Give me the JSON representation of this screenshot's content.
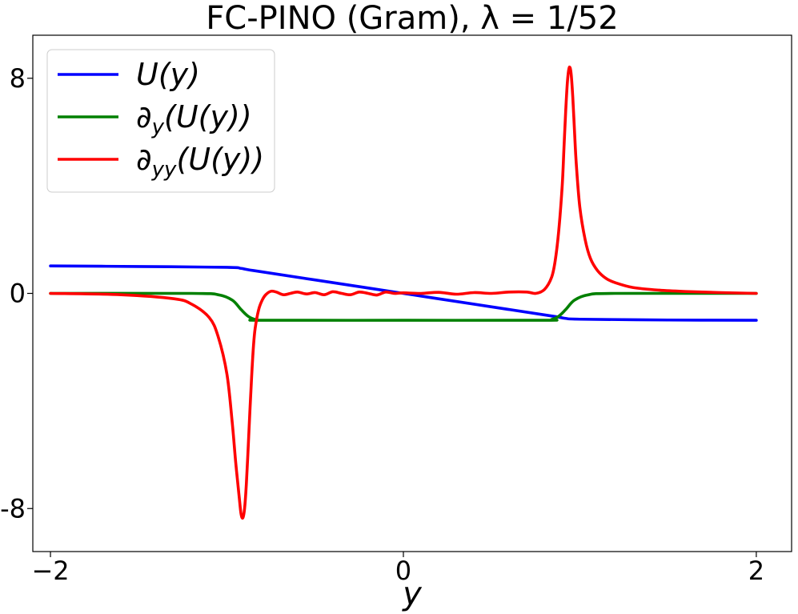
{
  "chart_data": {
    "type": "line",
    "title": "FC-PINO (Gram), λ = 1/52",
    "xlabel": "y",
    "ylabel": "",
    "xlim": [
      -2.1,
      2.2
    ],
    "ylim": [
      -9.6,
      9.6
    ],
    "x_ticks": [
      -2,
      0,
      2
    ],
    "x_tick_labels": [
      "−2",
      "0",
      "2"
    ],
    "y_ticks": [
      8,
      0,
      -8
    ],
    "y_tick_labels": [
      "8",
      "0",
      "-8"
    ],
    "grid": false,
    "legend_position": "top-left",
    "series": [
      {
        "name": "U(y)",
        "legend_main": "U(y)",
        "legend_sub": "",
        "legend_tail": "",
        "color": "#0000ff",
        "x": [
          -2.0,
          -1.5,
          -1.0,
          -0.92,
          -0.85,
          -0.5,
          0.0,
          0.5,
          0.85,
          0.92,
          1.0,
          1.5,
          2.0
        ],
        "y": [
          1.02,
          1.0,
          0.97,
          0.93,
          0.85,
          0.5,
          0.0,
          -0.5,
          -0.85,
          -0.93,
          -0.96,
          -0.99,
          -1.0
        ]
      },
      {
        "name": "∂y(U(y))",
        "legend_main": "∂",
        "legend_sub": "y",
        "legend_tail": "(U(y))",
        "color": "#008000",
        "x": [
          -2.0,
          -1.2,
          -1.05,
          -0.97,
          -0.92,
          -0.88,
          -0.84,
          -0.8,
          0.0,
          0.8,
          0.84,
          0.88,
          0.92,
          0.97,
          1.05,
          1.2,
          2.0
        ],
        "y": [
          0.0,
          0.0,
          -0.05,
          -0.25,
          -0.6,
          -0.85,
          -0.97,
          -1.0,
          -1.0,
          -1.0,
          -0.97,
          -0.85,
          -0.6,
          -0.25,
          -0.05,
          0.0,
          0.0
        ]
      },
      {
        "name": "∂yy(U(y))",
        "legend_main": "∂",
        "legend_sub": "yy",
        "legend_tail": "(U(y))",
        "color": "#ff0000",
        "x": [
          -2.0,
          -1.6,
          -1.3,
          -1.2,
          -1.1,
          -1.05,
          -1.0,
          -0.97,
          -0.95,
          -0.93,
          -0.92,
          -0.91,
          -0.9,
          -0.89,
          -0.88,
          -0.87,
          -0.86,
          -0.85,
          -0.84,
          -0.82,
          -0.8,
          -0.78,
          -0.75,
          -0.72,
          -0.68,
          -0.64,
          -0.6,
          -0.55,
          -0.5,
          -0.45,
          -0.4,
          -0.35,
          -0.3,
          -0.25,
          -0.2,
          -0.15,
          -0.1,
          -0.05,
          0.0,
          0.1,
          0.2,
          0.3,
          0.4,
          0.5,
          0.6,
          0.7,
          0.75,
          0.8,
          0.84,
          0.86,
          0.88,
          0.9,
          0.91,
          0.92,
          0.93,
          0.94,
          0.95,
          0.96,
          0.97,
          0.98,
          1.0,
          1.03,
          1.06,
          1.1,
          1.15,
          1.2,
          1.3,
          1.45,
          1.6,
          1.8,
          2.0
        ],
        "y": [
          0.0,
          -0.05,
          -0.2,
          -0.4,
          -0.9,
          -1.6,
          -3.0,
          -4.8,
          -6.3,
          -7.6,
          -8.2,
          -8.35,
          -8.0,
          -7.1,
          -5.8,
          -4.4,
          -3.1,
          -2.0,
          -1.3,
          -0.6,
          -0.25,
          -0.05,
          0.08,
          0.05,
          -0.05,
          0.0,
          0.05,
          -0.02,
          0.03,
          -0.05,
          0.06,
          0.0,
          -0.05,
          0.05,
          0.0,
          -0.06,
          0.05,
          0.0,
          0.02,
          0.0,
          0.04,
          -0.03,
          0.03,
          0.0,
          0.05,
          0.05,
          0.0,
          0.15,
          0.6,
          1.2,
          2.3,
          4.0,
          5.4,
          6.8,
          7.9,
          8.4,
          8.2,
          7.3,
          6.0,
          4.8,
          3.2,
          2.0,
          1.3,
          0.85,
          0.55,
          0.4,
          0.22,
          0.12,
          0.07,
          0.03,
          0.0
        ]
      }
    ]
  }
}
